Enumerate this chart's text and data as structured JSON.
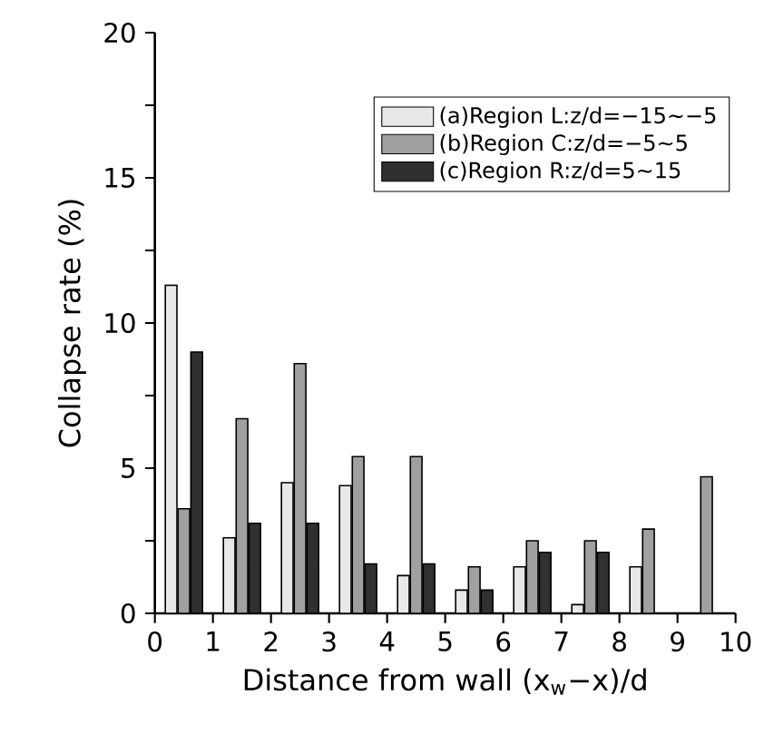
{
  "chart_data": {
    "type": "bar",
    "xlabel": "Distance from wall (x$_{w}$−x)/d",
    "ylabel": "Collapse rate (%)",
    "x": [
      0.5,
      1.5,
      2.5,
      3.5,
      4.5,
      5.5,
      6.5,
      7.5,
      8.5,
      9.5
    ],
    "series": [
      {
        "name": "(a)Region L:z/d=−15∼−5",
        "color": "#e8e8e8",
        "values": [
          11.3,
          2.6,
          4.5,
          4.4,
          1.3,
          0.8,
          1.6,
          0.3,
          1.6,
          null
        ]
      },
      {
        "name": "(b)Region C:z/d=−5∼5",
        "color": "#a0a0a0",
        "values": [
          3.6,
          6.7,
          8.6,
          5.4,
          5.4,
          1.6,
          2.5,
          2.5,
          2.9,
          4.7
        ]
      },
      {
        "name": "(c)Region R:z/d=5∼15",
        "color": "#303030",
        "values": [
          9.0,
          3.1,
          3.1,
          1.7,
          1.7,
          0.8,
          2.1,
          2.1,
          null,
          null
        ]
      }
    ],
    "xlim": [
      0,
      10
    ],
    "xticks": [
      0,
      1,
      2,
      3,
      4,
      5,
      6,
      7,
      8,
      9,
      10
    ],
    "ylim": [
      0,
      20
    ],
    "yticks": [
      0,
      {
        "value": 2.5,
        "label": null
      },
      5,
      {
        "value": 7.5,
        "label": null
      },
      10,
      {
        "value": 12.5,
        "label": null
      },
      15,
      {
        "value": 17.5,
        "label": null
      },
      20
    ],
    "legend": "top right",
    "grid": false
  }
}
